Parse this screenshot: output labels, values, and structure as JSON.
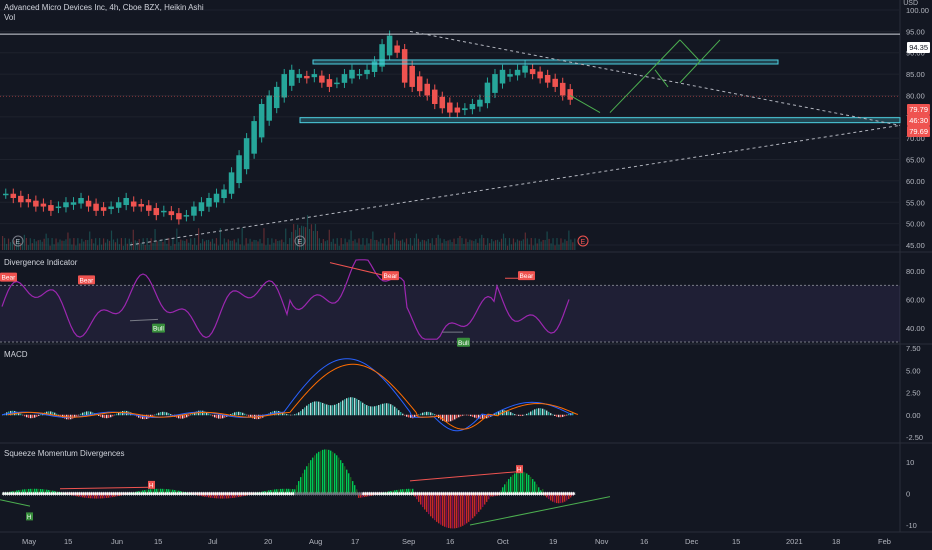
{
  "header": {
    "title": "Advanced Micro Devices Inc, 4h, Cboe BZX, Heikin Ashi",
    "vol_label": "Vol",
    "currency": "USD"
  },
  "panes": {
    "price": {
      "ticks": [
        "100.00",
        "95.00",
        "90.00",
        "85.00",
        "80.00",
        "75.00",
        "70.00",
        "65.00",
        "60.00",
        "55.00",
        "50.00",
        "45.00"
      ],
      "tick_values": [
        100,
        95,
        90,
        85,
        80,
        75,
        70,
        65,
        60,
        55,
        50,
        45
      ],
      "last_price": "79.79",
      "price_tag_2": "46:30",
      "price_tag_3": "79.69",
      "resistance_price": "94.35",
      "earnings_marker": "E"
    },
    "divergence": {
      "title": "Divergence Indicator",
      "ticks": [
        "80.00",
        "60.00",
        "40.00"
      ],
      "tick_values": [
        80,
        60,
        40
      ],
      "bear_label": "Bear",
      "bull_label": "Bull"
    },
    "macd": {
      "title": "MACD",
      "ticks": [
        "7.50",
        "5.00",
        "2.50",
        "0.00",
        "-2.50"
      ],
      "tick_values": [
        7.5,
        5,
        2.5,
        0,
        -2.5
      ]
    },
    "squeeze": {
      "title": "Squeeze Momentum Divergences",
      "ticks": [
        "10",
        "0",
        "-10"
      ],
      "tick_values": [
        10,
        0,
        -10
      ],
      "high_label": "H"
    }
  },
  "time_axis": [
    "May",
    "15",
    "Jun",
    "15",
    "Jul",
    "20",
    "Aug",
    "17",
    "Sep",
    "16",
    "Oct",
    "19",
    "Nov",
    "16",
    "Dec",
    "15",
    "2021",
    "18",
    "Feb"
  ],
  "colors": {
    "background": "#131722",
    "up": "#26a69a",
    "down": "#ef5350",
    "rsi": "#9c27b0",
    "macd": "#2962ff",
    "signal": "#ff6d00",
    "zone": "#4dd0e1",
    "arrow": "#4caf50"
  },
  "chart_data": {
    "type": "candlestick",
    "series": [
      {
        "name": "price",
        "values": [
          57,
          56,
          55,
          55,
          54,
          54,
          53,
          54,
          55,
          55,
          56,
          54,
          53,
          53,
          54,
          55,
          56,
          54,
          54,
          53,
          52,
          53,
          52,
          51,
          52,
          54,
          55,
          56,
          57,
          58,
          62,
          66,
          70,
          74,
          78,
          80,
          82,
          85,
          86,
          85,
          84,
          85,
          83,
          82,
          83,
          85,
          86,
          85,
          86,
          88,
          92,
          94,
          90,
          83,
          82,
          81,
          80,
          78,
          77,
          76,
          76,
          77,
          78,
          79,
          83,
          85,
          86,
          85,
          86,
          87,
          85,
          84,
          83,
          82,
          80,
          79
        ]
      }
    ],
    "ylim": [
      45,
      100
    ]
  }
}
